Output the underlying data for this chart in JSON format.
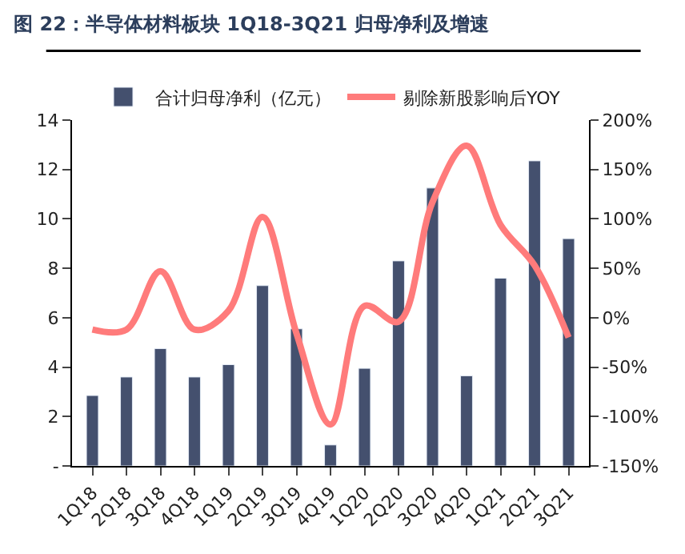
{
  "chart_data": {
    "type": "bar",
    "title": "图 22：半导体材料板块 1Q18-3Q21 归母净利及增速",
    "categories": [
      "1Q18",
      "2Q18",
      "3Q18",
      "4Q18",
      "1Q19",
      "2Q19",
      "3Q19",
      "4Q19",
      "1Q20",
      "2Q20",
      "3Q20",
      "4Q20",
      "1Q21",
      "2Q21",
      "3Q21"
    ],
    "series": [
      {
        "name": "合计归母净利（亿元）",
        "color": "#44506e",
        "values": [
          2.85,
          3.6,
          4.75,
          3.6,
          4.1,
          7.3,
          5.55,
          0.85,
          3.95,
          8.3,
          11.25,
          3.65,
          7.6,
          12.35,
          9.2
        ]
      },
      {
        "name": "剔除新股影响后YOY",
        "type": "line",
        "axis": "y2",
        "color": "#ff7b7b",
        "values": [
          -12,
          -12,
          47,
          -12,
          7,
          102,
          -16,
          -108,
          12,
          -4,
          117,
          174,
          94,
          53,
          -20
        ]
      }
    ],
    "ylim": [
      0,
      14
    ],
    "yticks": [
      {
        "value": 0,
        "label": "-"
      },
      2,
      4,
      6,
      8,
      10,
      12,
      14
    ],
    "y2lim": [
      -150,
      200
    ],
    "y2ticks": [
      {
        "value": -150,
        "label": "-150%"
      },
      {
        "value": -100,
        "label": "-100%"
      },
      {
        "value": -50,
        "label": "-50%"
      },
      {
        "value": 0,
        "label": "0%"
      },
      {
        "value": 50,
        "label": "50%"
      },
      {
        "value": 100,
        "label": "100%"
      },
      {
        "value": 150,
        "label": "150%"
      },
      {
        "value": 200,
        "label": "200%"
      }
    ],
    "legend": "top"
  }
}
